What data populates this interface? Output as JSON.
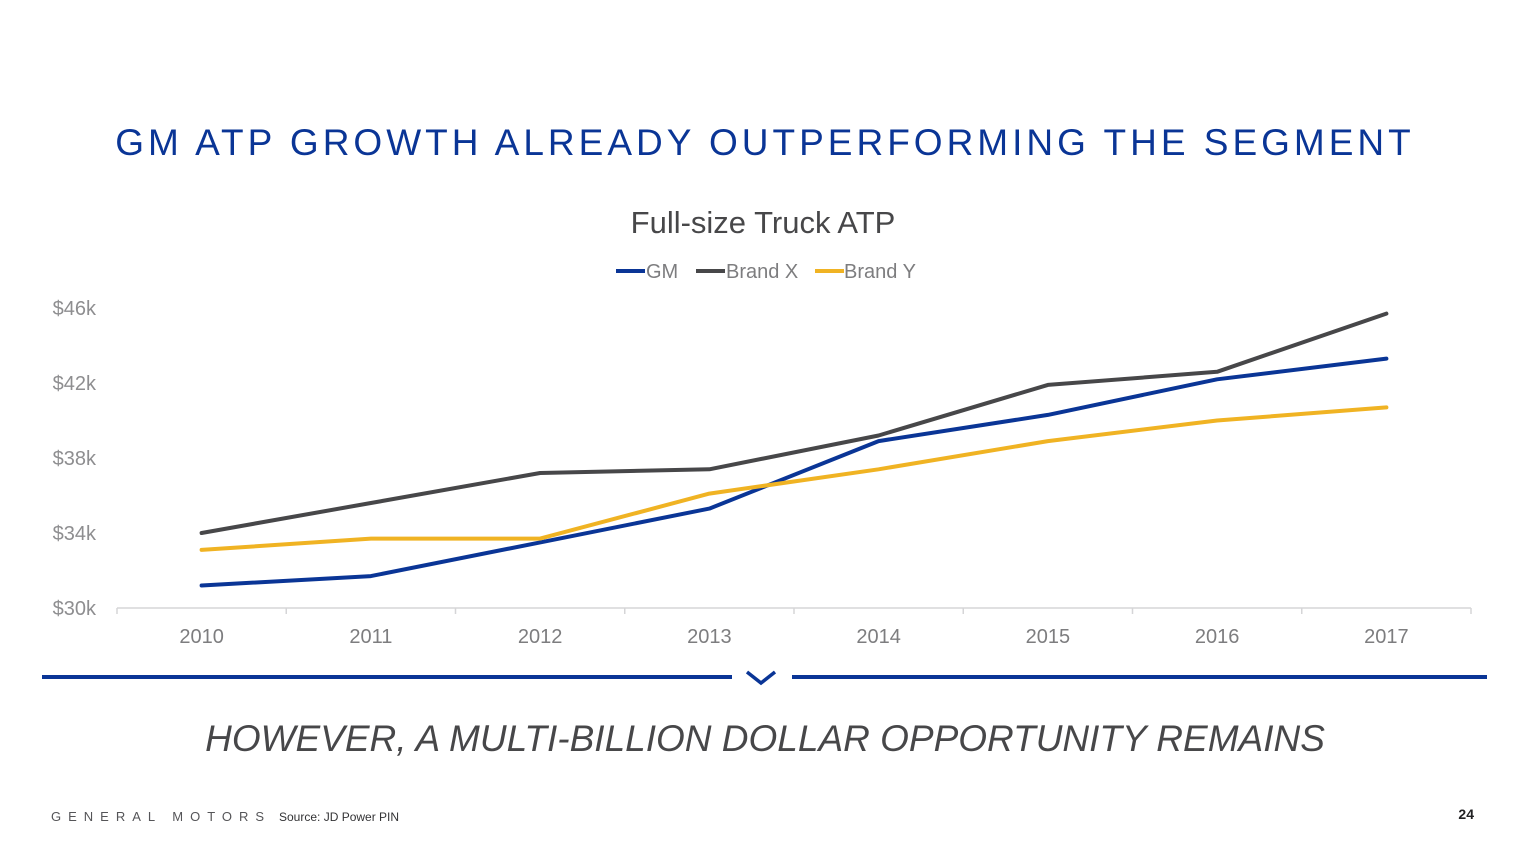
{
  "slide": {
    "title": "GM ATP GROWTH ALREADY OUTPERFORMING THE SEGMENT",
    "tagline": "HOWEVER, A MULTI-BILLION DOLLAR OPPORTUNITY REMAINS",
    "brand": "GENERAL MOTORS",
    "source": "Source: JD Power PIN",
    "page_number": "24"
  },
  "chart_data": {
    "type": "line",
    "title": "Full-size Truck ATP",
    "xlabel": "",
    "ylabel": "",
    "x": [
      "2010",
      "2011",
      "2012",
      "2013",
      "2014",
      "2015",
      "2016",
      "2017"
    ],
    "y_ticks": [
      30000,
      34000,
      38000,
      42000,
      46000
    ],
    "y_tick_labels": [
      "$30k",
      "$34k",
      "$38k",
      "$42k",
      "$46k"
    ],
    "ylim": [
      30000,
      46000
    ],
    "legend_position": "top-center",
    "grid": false,
    "series": [
      {
        "name": "GM",
        "color": "#0a3596",
        "values": [
          31200,
          31700,
          33500,
          35300,
          38900,
          40300,
          42200,
          43300
        ]
      },
      {
        "name": "Brand X",
        "color": "#474749",
        "values": [
          34000,
          35600,
          37200,
          37400,
          39200,
          41900,
          42600,
          45700
        ]
      },
      {
        "name": "Brand Y",
        "color": "#f0b323",
        "values": [
          33100,
          33700,
          33700,
          36100,
          37400,
          38900,
          40000,
          40700
        ]
      }
    ]
  }
}
